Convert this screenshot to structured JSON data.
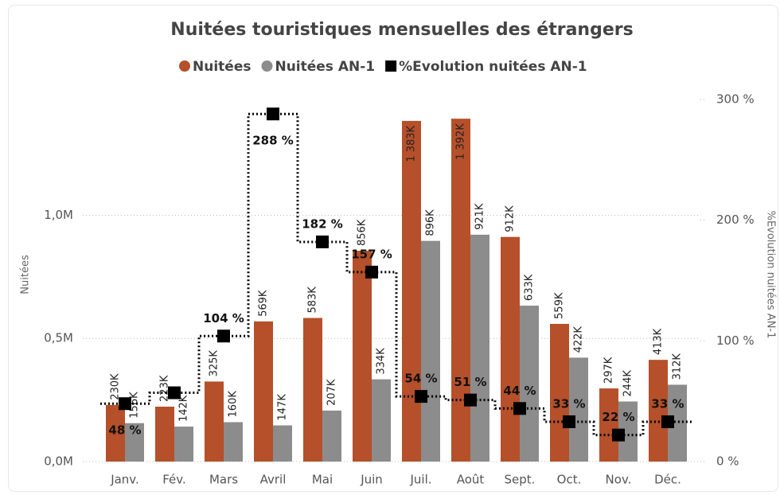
{
  "chart_data": {
    "type": "bar_line",
    "title": "Nuitées touristiques mensuelles des étrangers",
    "ylabel": "Nuitées",
    "y2label": "%Evolution nuitées AN-1",
    "categories": [
      "Janv.",
      "Fév.",
      "Mars",
      "Avril",
      "Mai",
      "Juin",
      "Juil.",
      "Août",
      "Sept.",
      "Oct.",
      "Nov.",
      "Déc."
    ],
    "series": [
      {
        "name": "Nuitées",
        "color": "#b5502a",
        "type": "bar",
        "values": [
          230000,
          223000,
          325000,
          569000,
          583000,
          856000,
          1383000,
          1392000,
          912000,
          559000,
          297000,
          413000
        ],
        "value_labels": [
          "230K",
          "223K",
          "325K",
          "569K",
          "583K",
          "856K",
          "1 383K",
          "1 392K",
          "912K",
          "559K",
          "297K",
          "413K"
        ]
      },
      {
        "name": "Nuitées AN-1",
        "color": "#8c8c8c",
        "type": "bar",
        "values": [
          156000,
          142000,
          160000,
          147000,
          207000,
          334000,
          896000,
          921000,
          633000,
          422000,
          244000,
          312000
        ],
        "value_labels": [
          "156K",
          "142K",
          "160K",
          "147K",
          "207K",
          "334K",
          "896K",
          "921K",
          "633K",
          "422K",
          "244K",
          "312K"
        ]
      },
      {
        "name": "%Evolution nuitées AN-1",
        "color": "#000000",
        "type": "step",
        "axis": "y2",
        "values": [
          48,
          57,
          104,
          288,
          182,
          157,
          54,
          51,
          44,
          33,
          22,
          33
        ],
        "value_labels": [
          "48 %",
          null,
          "104 %",
          "288 %",
          "182 %",
          "157 %",
          "54 %",
          "51 %",
          "44 %",
          "33 %",
          "22 %",
          "33 %"
        ]
      }
    ],
    "ylim": [
      0,
      1470000
    ],
    "yticks": [
      {
        "value": 0,
        "label": "0,0M"
      },
      {
        "value": 500000,
        "label": "0,5M"
      },
      {
        "value": 1000000,
        "label": "1,0M"
      }
    ],
    "y2lim": [
      0,
      300
    ],
    "y2ticks": [
      {
        "value": 0,
        "label": "0 %"
      },
      {
        "value": 100,
        "label": "100 %"
      },
      {
        "value": 200,
        "label": "200 %"
      },
      {
        "value": 300,
        "label": "300 %"
      }
    ],
    "grid": true
  }
}
